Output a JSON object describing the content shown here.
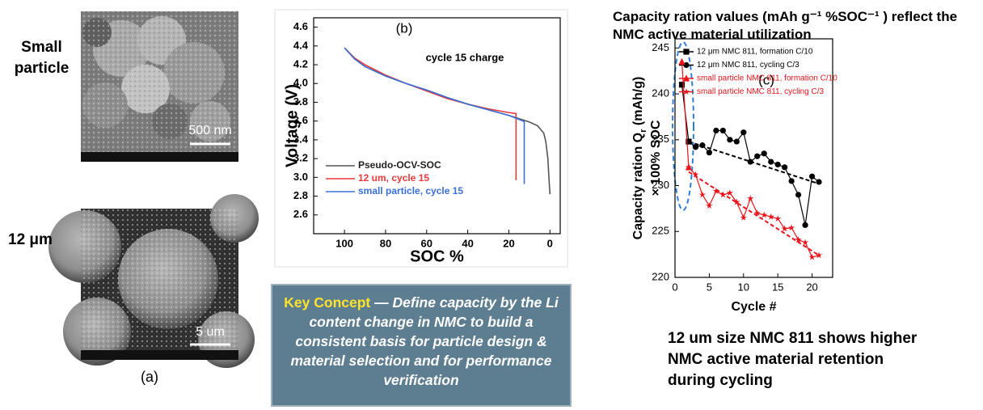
{
  "panel_a": {
    "labels": [
      "Small particle",
      "12 μm"
    ],
    "scale_bars": [
      "500 nm",
      "5 um"
    ],
    "caption": "(a)"
  },
  "key_concept": {
    "heading": "Key Concept",
    "body": " — Define capacity by the Li content change in NMC to build a consistent basis for particle design & material selection and for performance verification"
  },
  "conclusion": "12 um size NMC 811 shows higher NMC active material retention during cycling",
  "chart_data": [
    {
      "type": "line",
      "panel_label": "(b)",
      "annotation": "cycle 15 charge",
      "x_label": "SOC %",
      "y_label": "Voltage (V)",
      "xlim": [
        115,
        -5
      ],
      "ylim": [
        2.4,
        4.7
      ],
      "xticks": [
        100,
        80,
        60,
        40,
        20,
        0
      ],
      "yticks": [
        2.6,
        2.8,
        {
          "value": 3,
          "label": "3.0"
        },
        3.2,
        3.4,
        3.6,
        3.8,
        {
          "value": 4,
          "label": "4.0"
        },
        4.2,
        4.4,
        4.6
      ],
      "series": [
        {
          "name": "Pseudo-OCV-SOC",
          "color": "#555555",
          "x": [
            100,
            95,
            90,
            80,
            70,
            60,
            50,
            40,
            30,
            20,
            10,
            6,
            3,
            2,
            1,
            0.5,
            0
          ],
          "values": [
            4.38,
            4.26,
            4.18,
            4.08,
            4.0,
            3.93,
            3.85,
            3.78,
            3.72,
            3.66,
            3.59,
            3.55,
            3.47,
            3.38,
            3.2,
            3.0,
            2.82
          ]
        },
        {
          "name": "12 um, cycle 15",
          "color": "#e8383b",
          "x": [
            100,
            95,
            90,
            80,
            70,
            60,
            50,
            40,
            30,
            20,
            16.5,
            16.5
          ],
          "values": [
            4.38,
            4.27,
            4.2,
            4.09,
            4.0,
            3.92,
            3.84,
            3.78,
            3.73,
            3.69,
            3.68,
            2.97
          ]
        },
        {
          "name": "small particle, cycle 15",
          "color": "#3a6fd8",
          "x": [
            100,
            95,
            90,
            80,
            70,
            60,
            50,
            40,
            30,
            20,
            13,
            12.5,
            12.5
          ],
          "values": [
            4.38,
            4.26,
            4.18,
            4.08,
            4.0,
            3.93,
            3.85,
            3.78,
            3.72,
            3.66,
            3.6,
            3.59,
            2.93
          ]
        }
      ]
    },
    {
      "type": "line",
      "panel_label": "(c)",
      "title": "Capacity ration values (mAh g⁻¹ %SOC⁻¹ ) reflect the NMC active material utilization",
      "x_label": "Cycle #",
      "y_label": [
        "Capacity ration Q",
        "r",
        " (mAh/g)"
      ],
      "y_label_2": "× 100% SOC",
      "xlim": [
        0,
        23
      ],
      "ylim": [
        220,
        246
      ],
      "xticks": [
        0,
        5,
        10,
        15,
        20
      ],
      "yticks": [
        220,
        225,
        230,
        235,
        240,
        245
      ],
      "series": [
        {
          "name": "12 μm NMC 811, formation C/10",
          "color": "#000000",
          "marker": "square",
          "x": [
            1,
            2
          ],
          "values": [
            241,
            234.8
          ]
        },
        {
          "name": "12 μm NMC 811, cycling C/3",
          "color": "#000000",
          "marker": "circle",
          "x": [
            2,
            3,
            4,
            5,
            6,
            7,
            8,
            9,
            10,
            11,
            12,
            13,
            14,
            15,
            16,
            17,
            18,
            19,
            20,
            21
          ],
          "values": [
            234.8,
            234.2,
            234.4,
            233.6,
            236,
            236,
            235,
            234.8,
            235.8,
            232.6,
            233.2,
            233.5,
            232.6,
            232.3,
            232,
            230.5,
            229,
            225.7,
            231,
            230.4
          ]
        },
        {
          "name": "small particle NMC 811, formation C/10",
          "color": "#e8151b",
          "marker": "triangle",
          "x": [
            1,
            2
          ],
          "values": [
            243.5,
            232
          ]
        },
        {
          "name": "small particle NMC 811, cycling C/3",
          "color": "#e8151b",
          "marker": "star",
          "x": [
            2,
            3,
            4,
            5,
            6,
            7,
            8,
            9,
            10,
            11,
            12,
            13,
            14,
            15,
            16,
            17,
            18,
            19,
            20,
            21
          ],
          "values": [
            232,
            231.2,
            229,
            227.8,
            229.4,
            229,
            229.2,
            228.2,
            226.5,
            228.6,
            227,
            226.8,
            226.6,
            226.4,
            225.3,
            225.4,
            224.1,
            223.8,
            222.2,
            222.4
          ]
        }
      ],
      "trendlines": [
        {
          "color": "#000000",
          "x": [
            2,
            21
          ],
          "values": [
            234.8,
            230.2
          ]
        },
        {
          "color": "#e8151b",
          "x": [
            2,
            21
          ],
          "values": [
            231.5,
            222.4
          ]
        }
      ]
    }
  ]
}
